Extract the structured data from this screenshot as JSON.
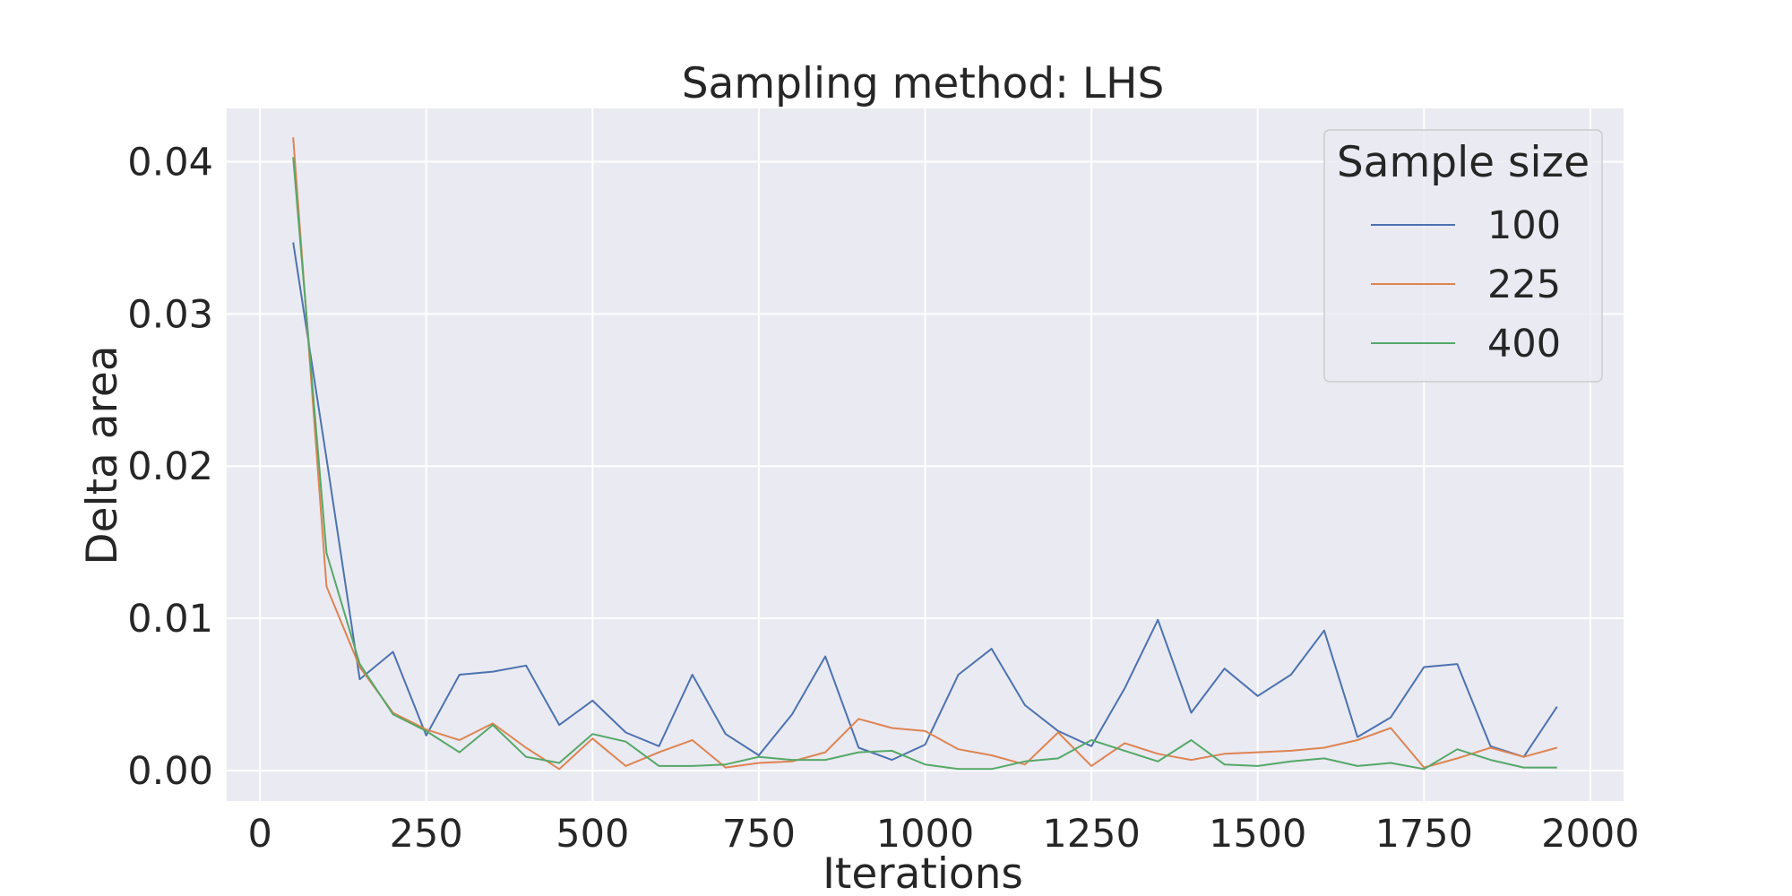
{
  "chart_data": {
    "type": "line",
    "title": "Sampling method: LHS",
    "xlabel": "Iterations",
    "ylabel": "Delta area",
    "xlim": [
      -50,
      2050
    ],
    "ylim": [
      -0.002,
      0.0435
    ],
    "xticks": [
      0,
      250,
      500,
      750,
      1000,
      1250,
      1500,
      1750,
      2000
    ],
    "yticks": [
      0.0,
      0.01,
      0.02,
      0.03,
      0.04
    ],
    "xtick_labels": [
      "0",
      "250",
      "500",
      "750",
      "1000",
      "1250",
      "1500",
      "1750",
      "2000"
    ],
    "ytick_labels": [
      "0.00",
      "0.01",
      "0.02",
      "0.03",
      "0.04"
    ],
    "grid": true,
    "legend": {
      "title": "Sample size",
      "placement": "top-right"
    },
    "x": [
      50,
      100,
      150,
      200,
      250,
      300,
      350,
      400,
      450,
      500,
      550,
      600,
      650,
      700,
      750,
      800,
      850,
      900,
      950,
      1000,
      1050,
      1100,
      1150,
      1200,
      1250,
      1300,
      1350,
      1400,
      1450,
      1500,
      1550,
      1600,
      1650,
      1700,
      1750,
      1800,
      1850,
      1900,
      1950
    ],
    "series": [
      {
        "name": "100",
        "color": "#4c72b0",
        "values": [
          0.0347,
          0.0205,
          0.006,
          0.0078,
          0.0023,
          0.0063,
          0.0065,
          0.0069,
          0.003,
          0.0046,
          0.0025,
          0.0016,
          0.0063,
          0.0024,
          0.001,
          0.0037,
          0.0075,
          0.0015,
          0.0007,
          0.0017,
          0.0063,
          0.008,
          0.0043,
          0.0026,
          0.0016,
          0.0054,
          0.0099,
          0.0038,
          0.0067,
          0.0049,
          0.0063,
          0.0092,
          0.0022,
          0.0035,
          0.0068,
          0.007,
          0.0016,
          0.0009,
          0.0042
        ]
      },
      {
        "name": "225",
        "color": "#dd8452",
        "values": [
          0.0416,
          0.0121,
          0.0068,
          0.0038,
          0.0027,
          0.002,
          0.0031,
          0.0015,
          0.0001,
          0.0021,
          0.0003,
          0.0012,
          0.002,
          0.0002,
          0.0005,
          0.0006,
          0.0012,
          0.0034,
          0.0028,
          0.0026,
          0.0014,
          0.001,
          0.0004,
          0.0025,
          0.0003,
          0.0018,
          0.0011,
          0.0007,
          0.0011,
          0.0012,
          0.0013,
          0.0015,
          0.002,
          0.0028,
          0.0002,
          0.0008,
          0.0015,
          0.0009,
          0.0015
        ]
      },
      {
        "name": "400",
        "color": "#55a868",
        "values": [
          0.0403,
          0.0143,
          0.007,
          0.0037,
          0.0026,
          0.0012,
          0.003,
          0.0009,
          0.0005,
          0.0024,
          0.0019,
          0.0003,
          0.0003,
          0.0004,
          0.0009,
          0.0007,
          0.0007,
          0.0012,
          0.0013,
          0.0004,
          0.0001,
          0.0001,
          0.0006,
          0.0008,
          0.002,
          0.0013,
          0.0006,
          0.002,
          0.0004,
          0.0003,
          0.0006,
          0.0008,
          0.0003,
          0.0005,
          0.0001,
          0.0014,
          0.0007,
          0.0002,
          0.0002
        ]
      }
    ]
  }
}
